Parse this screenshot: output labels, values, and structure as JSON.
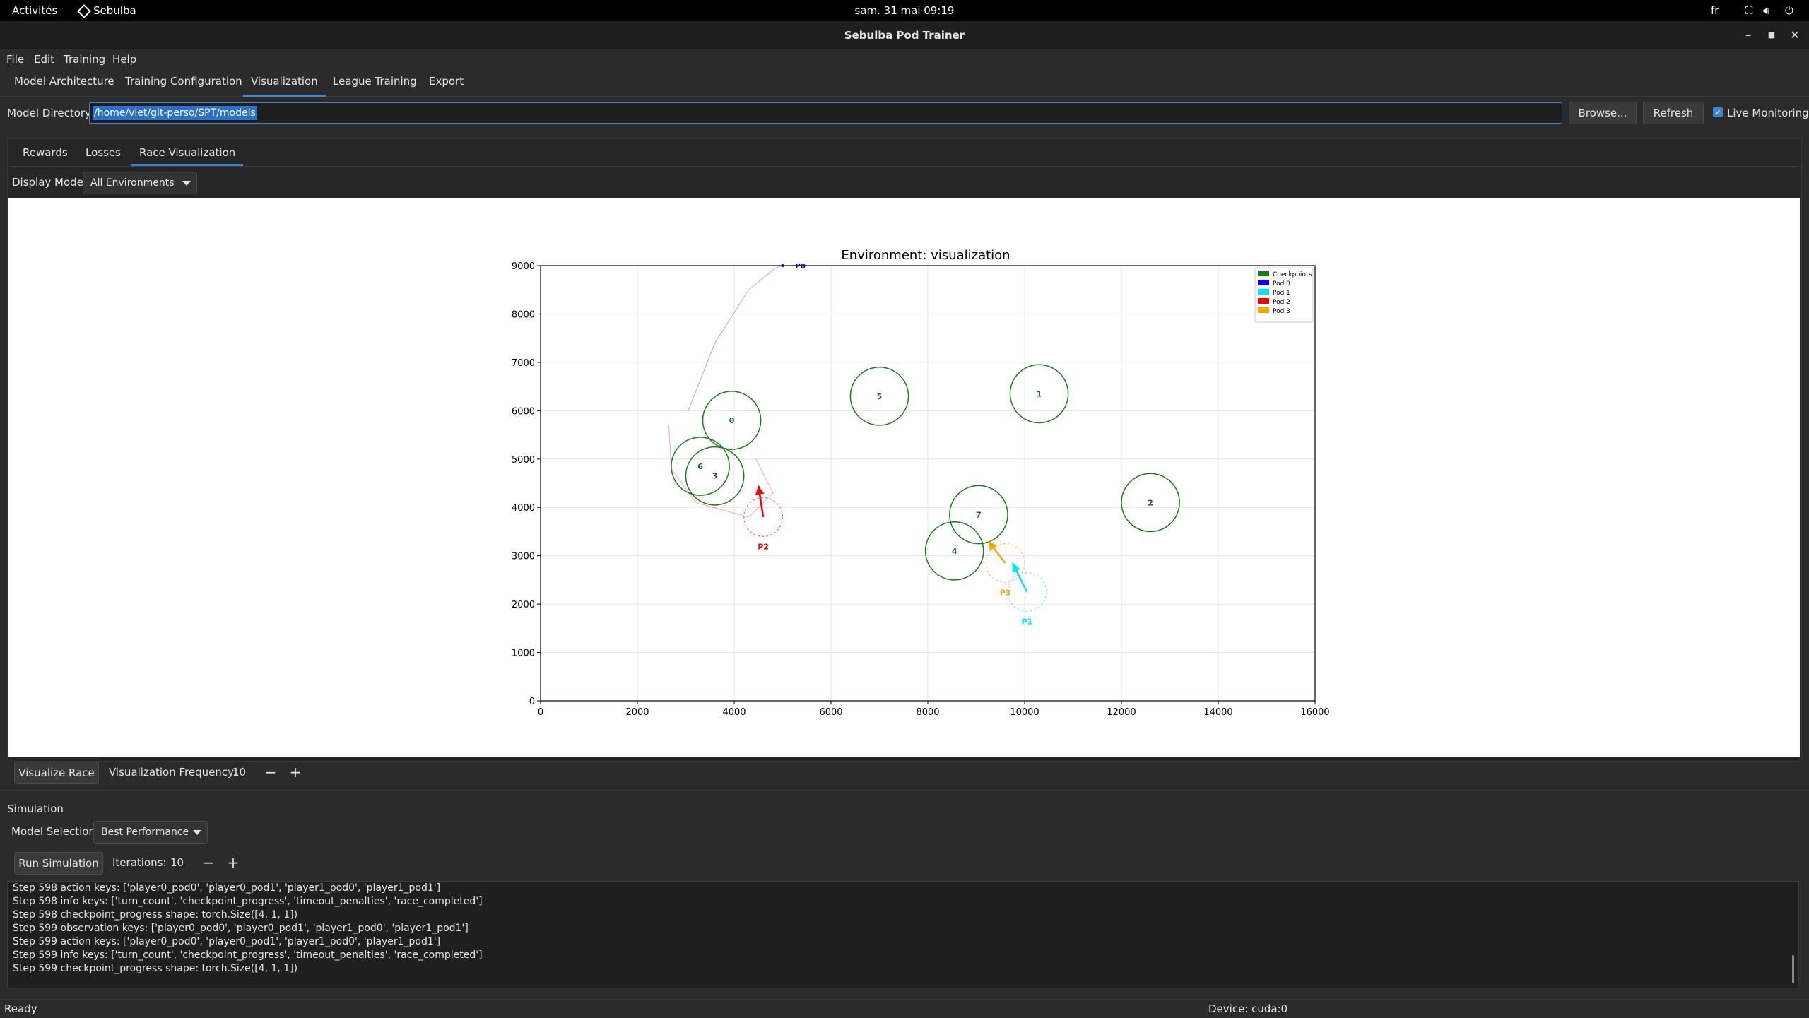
{
  "system_bar": {
    "activities": "Activités",
    "app_name": "Sebulba",
    "clock": "sam. 31 mai  09:19",
    "language": "fr"
  },
  "window": {
    "title": "Sebulba Pod Trainer"
  },
  "menu": [
    "File",
    "Edit",
    "Training",
    "Help"
  ],
  "main_tabs": [
    "Model Architecture",
    "Training Configuration",
    "Visualization",
    "League Training",
    "Export"
  ],
  "active_main_tab": "Visualization",
  "model_dir": {
    "label": "Model Directory:",
    "value": "/home/viet/git-perso/SPT/models",
    "browse": "Browse...",
    "refresh": "Refresh",
    "live_monitoring": "Live Monitoring",
    "live_monitoring_checked": true
  },
  "sub_tabs": [
    "Rewards",
    "Losses",
    "Race Visualization"
  ],
  "active_sub_tab": "Race Visualization",
  "display_mode": {
    "label": "Display Mode:",
    "value": "All Environments"
  },
  "chart_data": {
    "type": "scatter",
    "title": "Environment: visualization",
    "xlim": [
      0,
      16000
    ],
    "ylim": [
      0,
      9000
    ],
    "x_ticks": [
      0,
      2000,
      4000,
      6000,
      8000,
      10000,
      12000,
      14000,
      16000
    ],
    "y_ticks": [
      0,
      1000,
      2000,
      3000,
      4000,
      5000,
      6000,
      7000,
      8000,
      9000
    ],
    "grid": true,
    "legend_position": "top-right",
    "legend": [
      {
        "name": "Checkpoints",
        "color": "#1f7a1f"
      },
      {
        "name": "Pod 0",
        "color": "#0000ff"
      },
      {
        "name": "Pod 1",
        "color": "#00e5ff"
      },
      {
        "name": "Pod 2",
        "color": "#ff0000"
      },
      {
        "name": "Pod 3",
        "color": "#ffa500"
      }
    ],
    "checkpoints": [
      {
        "id": "0",
        "x": 3950,
        "y": 5800
      },
      {
        "id": "1",
        "x": 10300,
        "y": 6350
      },
      {
        "id": "2",
        "x": 12600,
        "y": 4100
      },
      {
        "id": "3",
        "x": 3600,
        "y": 4650
      },
      {
        "id": "4",
        "x": 8550,
        "y": 3100
      },
      {
        "id": "5",
        "x": 7000,
        "y": 6300
      },
      {
        "id": "6",
        "x": 3300,
        "y": 4850
      },
      {
        "id": "7",
        "x": 9050,
        "y": 3850
      }
    ],
    "checkpoint_radius": 600,
    "pods": [
      {
        "label": "P0",
        "color": "#0000ff",
        "x": 5000,
        "y": 9000,
        "trail": [
          [
            3050,
            6000
          ],
          [
            3600,
            7400
          ],
          [
            4300,
            8500
          ],
          [
            4850,
            8950
          ],
          [
            5000,
            9000
          ]
        ]
      },
      {
        "label": "P1",
        "color": "#00e5ff",
        "x": 10050,
        "y": 2250,
        "heading": [
          -300,
          600
        ]
      },
      {
        "label": "P2",
        "color": "#ff0000",
        "x": 4600,
        "y": 3800,
        "heading": [
          -100,
          650
        ],
        "trail": [
          [
            2650,
            5700
          ],
          [
            2700,
            4800
          ],
          [
            3200,
            4100
          ],
          [
            4300,
            3800
          ],
          [
            4800,
            4300
          ],
          [
            4450,
            5000
          ]
        ]
      },
      {
        "label": "P3",
        "color": "#ffa500",
        "x": 9600,
        "y": 2850,
        "heading": [
          -350,
          450
        ]
      }
    ]
  },
  "visualize": {
    "button": "Visualize Race",
    "frequency_label": "Visualization Frequency:",
    "frequency_value": "10"
  },
  "simulation": {
    "section_title": "Simulation",
    "model_selection_label": "Model Selection:",
    "model_selection_value": "Best Performance",
    "run_button": "Run Simulation",
    "iterations_label": "Iterations:",
    "iterations_value": "10"
  },
  "log_lines": [
    "Step 598 action keys: ['player0_pod0', 'player0_pod1', 'player1_pod0', 'player1_pod1']",
    "Step 598 info keys: ['turn_count', 'checkpoint_progress', 'timeout_penalties', 'race_completed']",
    "Step 598 checkpoint_progress shape: torch.Size([4, 1, 1])",
    "Step 599 observation keys: ['player0_pod0', 'player0_pod1', 'player1_pod0', 'player1_pod1']",
    "Step 599 action keys: ['player0_pod0', 'player0_pod1', 'player1_pod0', 'player1_pod1']",
    "Step 599 info keys: ['turn_count', 'checkpoint_progress', 'timeout_penalties', 'race_completed']",
    "Step 599 checkpoint_progress shape: torch.Size([4, 1, 1])"
  ],
  "status": {
    "left": "Ready",
    "device": "Device: cuda:0"
  }
}
